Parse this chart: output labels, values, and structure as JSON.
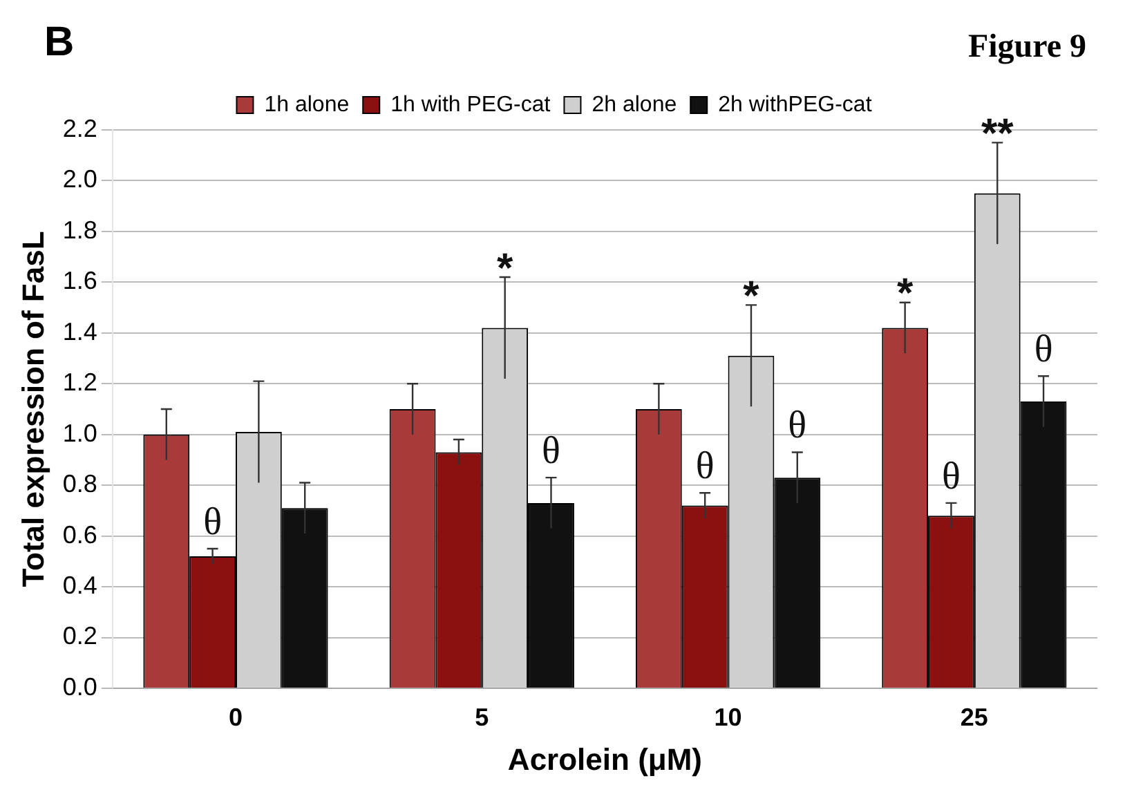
{
  "chart_data": {
    "type": "bar",
    "xlabel": "Acrolein (μM)",
    "ylabel": "Total expression of FasL",
    "categories": [
      "0",
      "5",
      "10",
      "25"
    ],
    "series": [
      {
        "name": "1h alone",
        "color": "#a83a3a",
        "values": [
          1.0,
          1.1,
          1.1,
          1.42
        ],
        "errors": [
          0.1,
          0.1,
          0.1,
          0.1
        ]
      },
      {
        "name": "1h with PEG-cat",
        "color": "#8b1010",
        "values": [
          0.52,
          0.93,
          0.72,
          0.68
        ],
        "errors": [
          0.03,
          0.05,
          0.05,
          0.05
        ]
      },
      {
        "name": "2h alone",
        "color": "#cfcfcf",
        "values": [
          1.01,
          1.42,
          1.31,
          1.95
        ],
        "errors": [
          0.2,
          0.2,
          0.2,
          0.2
        ]
      },
      {
        "name": "2h withPEG-cat",
        "color": "#111111",
        "values": [
          0.71,
          0.73,
          0.83,
          1.13
        ],
        "errors": [
          0.1,
          0.1,
          0.1,
          0.1
        ]
      }
    ],
    "ylim": [
      0,
      2.2
    ],
    "yticks": [
      {
        "value": 0,
        "label": "0.0"
      },
      {
        "value": 0.2,
        "label": "0.2"
      },
      {
        "value": 0.4,
        "label": "0.4"
      },
      {
        "value": 0.6,
        "label": "0.6"
      },
      {
        "value": 0.8,
        "label": "0.8"
      },
      {
        "value": 1.0,
        "label": "1.0"
      },
      {
        "value": 1.2,
        "label": "1.2"
      },
      {
        "value": 1.4,
        "label": "1.4"
      },
      {
        "value": 1.6,
        "label": "1.6"
      },
      {
        "value": 1.8,
        "label": "1.8"
      },
      {
        "value": 2.0,
        "label": "2.0"
      },
      {
        "value": 2.2,
        "label": "2.2"
      }
    ],
    "grid": "y",
    "legend": "top",
    "annotations": [
      "B",
      "Figure 9",
      {
        "text": "θ",
        "x": "0",
        "y": 0.52
      },
      {
        "text": "*",
        "x": "5",
        "y": 1.42
      },
      {
        "text": "θ",
        "x": "5",
        "y": 0.73
      },
      {
        "text": "*",
        "x": "10",
        "y": 1.31
      },
      {
        "text": "θ",
        "x": "10",
        "y": 0.72
      },
      {
        "text": "θ",
        "x": "10",
        "y": 0.83
      },
      {
        "text": "*",
        "x": "25",
        "y": 1.42
      },
      {
        "text": "θ",
        "x": "25",
        "y": 0.68
      },
      {
        "text": "**",
        "x": "25",
        "y": 1.95
      },
      {
        "text": "θ",
        "x": "25",
        "y": 1.13
      }
    ]
  }
}
